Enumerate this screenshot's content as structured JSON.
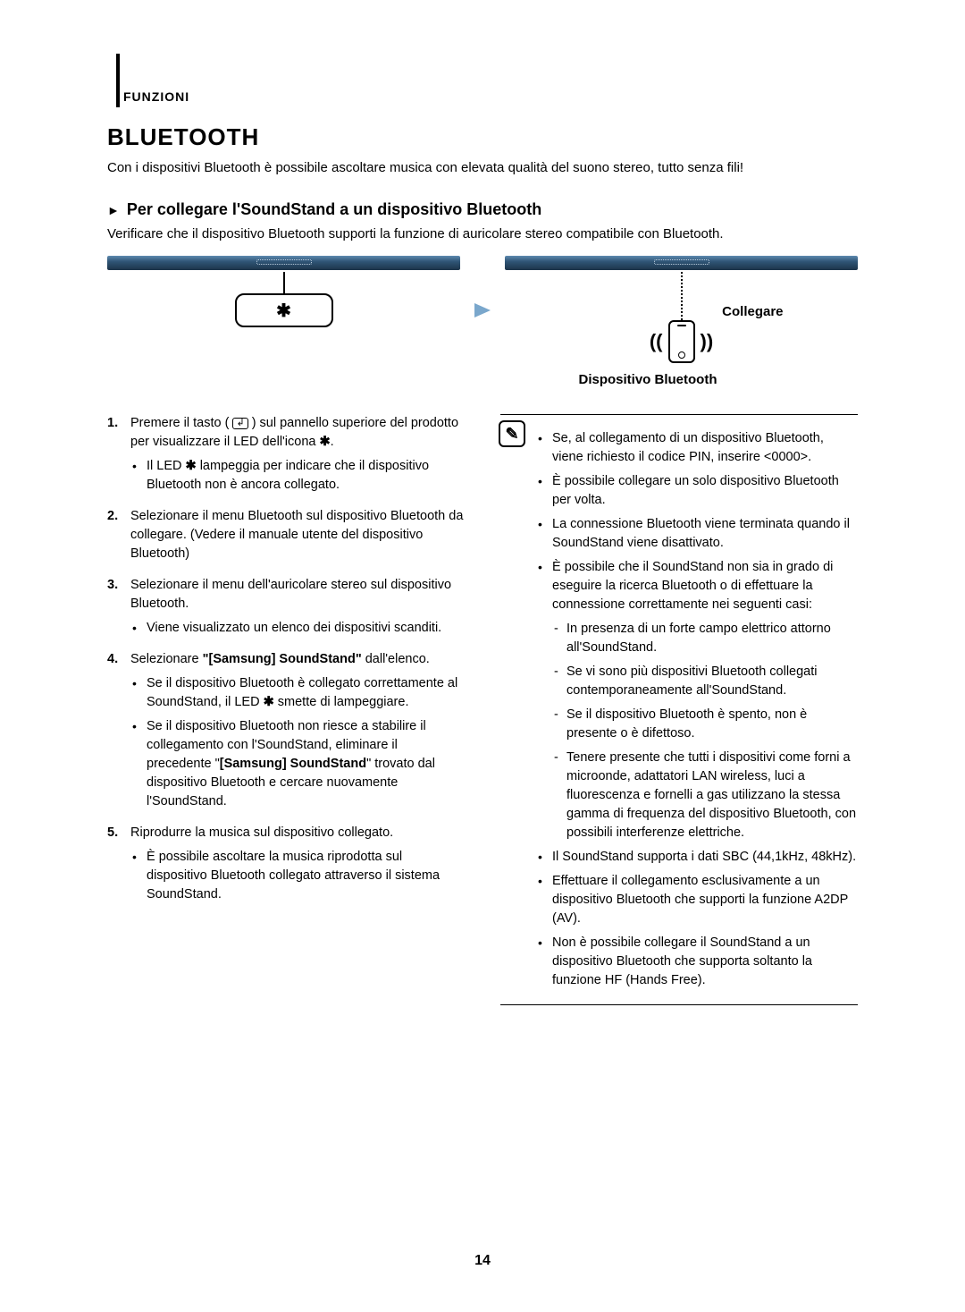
{
  "section_label": "FUNZIONI",
  "title": "BLUETOOTH",
  "intro": "Con i dispositivi Bluetooth è possibile ascoltare musica con elevata qualità del suono stereo, tutto senza fili!",
  "subheading": "Per collegare l'SoundStand a un dispositivo Bluetooth",
  "subcaption": "Verificare che il dispositivo Bluetooth supporti la funzione di auricolare stereo compatibile con Bluetooth.",
  "collegare": "Collegare",
  "device_label": "Dispositivo Bluetooth",
  "steps": {
    "s1a": "Premere il tasto (",
    "s1b": ") sul pannello superiore del prodotto per visualizzare il LED dell'icona",
    "s1_sub": "Il LED ",
    "s1_sub2": " lampeggia per indicare che il dispositivo Bluetooth non è ancora collegato.",
    "s2": "Selezionare il menu Bluetooth sul dispositivo Bluetooth da collegare. (Vedere il manuale utente del dispositivo Bluetooth)",
    "s3": "Selezionare il menu dell'auricolare stereo sul dispositivo Bluetooth.",
    "s3_sub": "Viene visualizzato un elenco dei dispositivi scanditi.",
    "s4a": "Selezionare ",
    "s4b": "\"[Samsung] SoundStand\"",
    "s4c": " dall'elenco.",
    "s4_sub1a": "Se il dispositivo Bluetooth è collegato correttamente al SoundStand, il LED ",
    "s4_sub1b": " smette di lampeggiare.",
    "s4_sub2a": "Se il dispositivo Bluetooth non riesce a stabilire il collegamento con l'SoundStand, eliminare il precedente \"",
    "s4_sub2b": "[Samsung] SoundStand",
    "s4_sub2c": "\" trovato dal dispositivo Bluetooth e cercare nuovamente l'SoundStand.",
    "s5": "Riprodurre la musica sul dispositivo collegato.",
    "s5_sub": "È possibile ascoltare la musica riprodotta sul dispositivo Bluetooth collegato attraverso il sistema SoundStand."
  },
  "notes": {
    "n1": "Se, al collegamento di un dispositivo Bluetooth, viene richiesto il codice PIN, inserire <0000>.",
    "n2": "È possibile collegare un solo dispositivo Bluetooth per volta.",
    "n3": "La connessione Bluetooth viene terminata quando il SoundStand viene disattivato.",
    "n4": "È possibile che il SoundStand non sia in grado di eseguire la ricerca Bluetooth o di effettuare la connessione correttamente nei seguenti casi:",
    "n4d1": "In presenza di un forte campo elettrico attorno all'SoundStand.",
    "n4d2": "Se vi sono più dispositivi Bluetooth collegati contemporaneamente all'SoundStand.",
    "n4d3": "Se il dispositivo Bluetooth è spento, non è presente o è difettoso.",
    "n4d4": "Tenere presente che tutti i dispositivi come forni a microonde, adattatori LAN wireless, luci a fluorescenza e fornelli a gas utilizzano la stessa gamma di frequenza del dispositivo Bluetooth, con possibili interferenze elettriche.",
    "n5": "Il SoundStand supporta i dati SBC (44,1kHz, 48kHz).",
    "n6": "Effettuare il collegamento esclusivamente a un dispositivo Bluetooth che supporti la funzione A2DP (AV).",
    "n7": "Non è possibile collegare il SoundStand a un dispositivo Bluetooth che supporta soltanto la funzione HF (Hands Free)."
  },
  "page_number": "14"
}
